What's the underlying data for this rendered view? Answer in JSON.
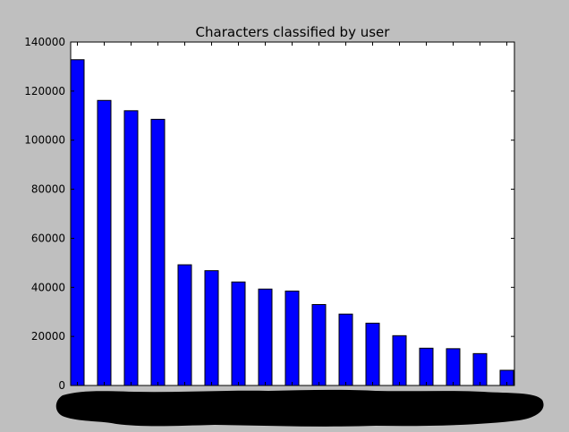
{
  "chart_data": {
    "type": "bar",
    "title": "Characters classified by user",
    "xlabel": "",
    "ylabel": "",
    "ylim": [
      0,
      140000
    ],
    "yticks": [
      0,
      20000,
      40000,
      60000,
      80000,
      100000,
      120000,
      140000
    ],
    "values": [
      132800,
      116200,
      112000,
      108500,
      49200,
      46800,
      42200,
      39300,
      38500,
      33000,
      29100,
      25400,
      20300,
      15200,
      15000,
      13000,
      6200
    ],
    "grid": false,
    "legend": "none",
    "bar_color": "#0000ff",
    "background_color": "#bfbfbf",
    "plot_color": "#ffffff",
    "redaction_color": "#000000",
    "x_tick_labels_redacted": true
  }
}
